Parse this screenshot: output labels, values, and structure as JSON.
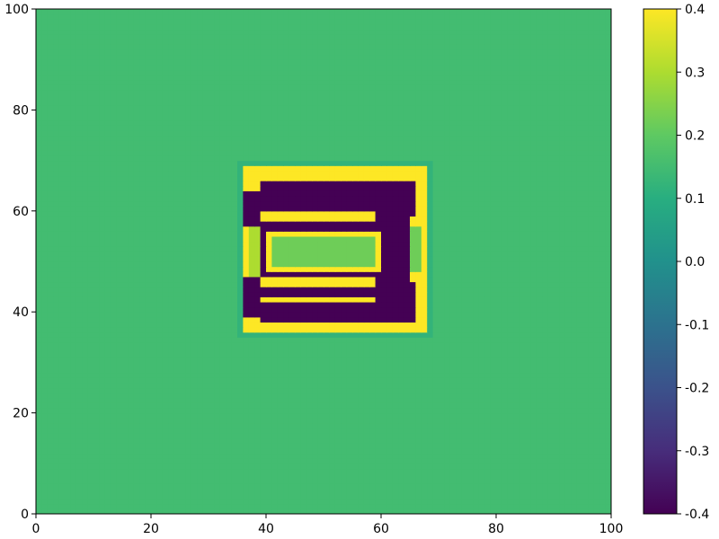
{
  "chart_data": {
    "type": "heatmap",
    "title": "",
    "xlabel": "",
    "ylabel": "",
    "xlim": [
      0,
      100
    ],
    "ylim": [
      0,
      100
    ],
    "grid": false,
    "colormap": "viridis",
    "colorbar_range": [
      -0.4,
      0.4
    ],
    "x_ticks": [
      "0",
      "20",
      "40",
      "60",
      "80",
      "100"
    ],
    "y_ticks": [
      "0",
      "20",
      "40",
      "60",
      "80",
      "100"
    ],
    "colorbar_ticks": [
      "-0.4",
      "-0.3",
      "-0.2",
      "-0.1",
      "0.0",
      "0.1",
      "0.2",
      "0.3",
      "0.4"
    ],
    "background_value": 0.15,
    "grid_cells": 100,
    "regions": [
      {
        "x": [
          35,
          68
        ],
        "y": [
          35,
          69
        ],
        "value": 0.12
      },
      {
        "x": [
          36,
          67
        ],
        "y": [
          36,
          68
        ],
        "value": 0.4
      },
      {
        "x": [
          37,
          66
        ],
        "y": [
          48,
          56
        ],
        "value": 0.22
      },
      {
        "x": [
          37,
          38
        ],
        "y": [
          45,
          59
        ],
        "value": 0.3
      },
      {
        "x": [
          39,
          62
        ],
        "y": [
          47,
          57
        ],
        "value": -0.4
      },
      {
        "x": [
          59,
          64
        ],
        "y": [
          45,
          59
        ],
        "value": -0.4
      },
      {
        "x": [
          40,
          59
        ],
        "y": [
          48,
          55
        ],
        "value": 0.4
      },
      {
        "x": [
          41,
          58
        ],
        "y": [
          49,
          54
        ],
        "value": 0.22
      },
      {
        "x": [
          39,
          61
        ],
        "y": [
          43,
          44
        ],
        "value": -0.4
      },
      {
        "x": [
          39,
          61
        ],
        "y": [
          40,
          41
        ],
        "value": -0.4
      },
      {
        "x": [
          39,
          61
        ],
        "y": [
          38,
          39
        ],
        "value": -0.4
      },
      {
        "x": [
          39,
          60
        ],
        "y": [
          60,
          61
        ],
        "value": -0.4
      },
      {
        "x": [
          39,
          60
        ],
        "y": [
          62,
          63
        ],
        "value": -0.4
      },
      {
        "x": [
          39,
          60
        ],
        "y": [
          64,
          65
        ],
        "value": -0.4
      },
      {
        "x": [
          36,
          38
        ],
        "y": [
          57,
          63
        ],
        "value": -0.4
      },
      {
        "x": [
          36,
          38
        ],
        "y": [
          39,
          46
        ],
        "value": -0.4
      },
      {
        "x": [
          59,
          65
        ],
        "y": [
          59,
          65
        ],
        "value": -0.4
      },
      {
        "x": [
          59,
          65
        ],
        "y": [
          38,
          45
        ],
        "value": -0.4
      }
    ]
  }
}
